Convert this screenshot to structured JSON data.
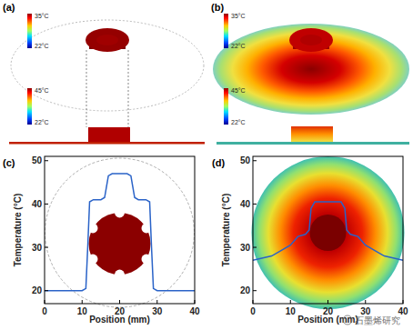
{
  "chart_data": [
    {
      "type": "line",
      "title": "(c)",
      "x_label": "Position (mm)",
      "y_label": "Temperature (°C)",
      "x": [
        0,
        10,
        11,
        11.5,
        12,
        13,
        15,
        16,
        16.5,
        17,
        18,
        20,
        22,
        23,
        23.5,
        24,
        25,
        27,
        28,
        28.5,
        29,
        30,
        40
      ],
      "series": [
        {
          "color": "#2a63c8",
          "values": [
            20,
            20,
            20.5,
            30,
            40.5,
            41,
            41,
            41.5,
            44,
            46.5,
            47,
            47,
            47,
            46.5,
            44,
            41.5,
            41,
            41,
            40.5,
            30,
            20.5,
            20,
            20
          ]
        }
      ],
      "xlim": [
        0,
        40
      ],
      "xticks": [
        0,
        10,
        20,
        30,
        40
      ],
      "ylim": [
        17,
        51
      ],
      "yticks": [
        20,
        30,
        40,
        50
      ]
    },
    {
      "type": "line",
      "title": "(d)",
      "x_label": "Position (mm)",
      "y_label": "Temperature (°C)",
      "x": [
        0,
        5,
        10,
        12,
        14,
        15,
        15.5,
        16.5,
        20,
        23.5,
        24.5,
        25,
        26,
        28,
        30,
        35,
        40
      ],
      "series": [
        {
          "color": "#2a63c8",
          "values": [
            27,
            28,
            30.5,
            32.5,
            33,
            34,
            39,
            40.5,
            40.5,
            40.5,
            39,
            34,
            33,
            32.5,
            30.5,
            28,
            27
          ]
        }
      ],
      "xlim": [
        0,
        40
      ],
      "xticks": [
        0,
        10,
        20,
        30,
        40
      ],
      "ylim": [
        17,
        51
      ],
      "yticks": [
        20,
        30,
        40,
        50
      ]
    }
  ],
  "panels": [
    {
      "label": "(a)",
      "colorbars": [
        {
          "max": "35°C",
          "min": "22°C"
        },
        {
          "max": "45°C",
          "min": "22°C"
        }
      ]
    },
    {
      "label": "(b)",
      "colorbars": [
        {
          "max": "35°C",
          "min": "22°C"
        },
        {
          "max": "45°C",
          "min": "22°C"
        }
      ]
    }
  ],
  "watermark": "石墨烯研究"
}
